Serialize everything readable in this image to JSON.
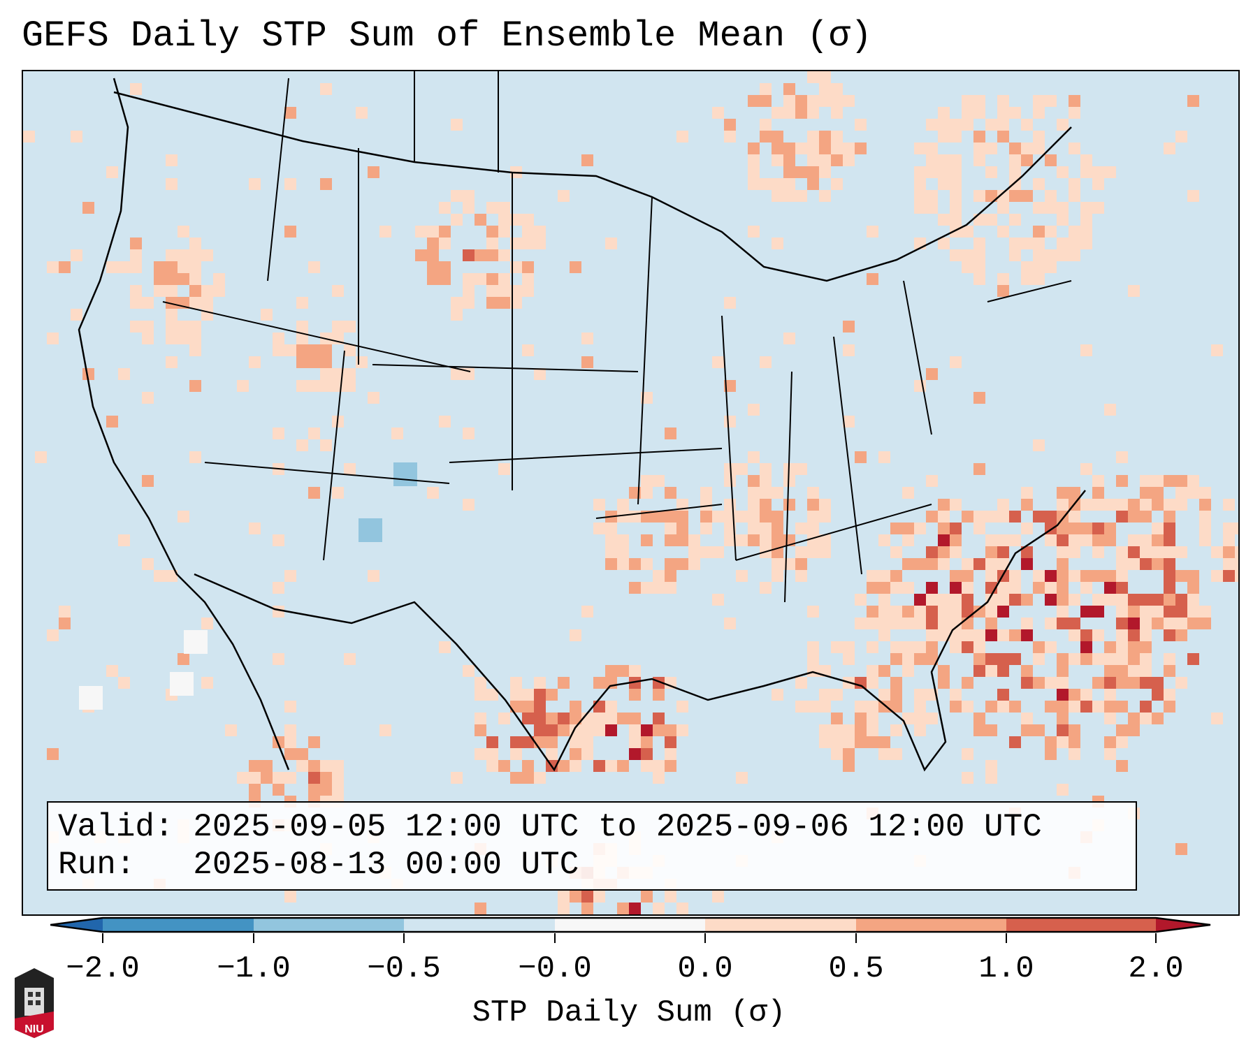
{
  "title": "GEFS Daily STP Sum of Ensemble Mean (σ)",
  "info": {
    "valid_label": "Valid:",
    "valid_value": "2025-09-05 12:00 UTC to 2025-09-06 12:00 UTC",
    "run_label": "Run:",
    "run_value": "2025-08-13 00:00 UTC"
  },
  "colorbar": {
    "label": "STP Daily Sum (σ)",
    "ticks": [
      "−2.0",
      "−1.0",
      "−0.5",
      "−0.0",
      "0.0",
      "0.5",
      "1.0",
      "2.0"
    ],
    "colors": {
      "under": "#2166ac",
      "b1": "#4393c3",
      "b2": "#92c5de",
      "b3": "#d1e5f0",
      "b4": "#f7f7f7",
      "b5": "#fddbc7",
      "b6": "#f4a582",
      "b7": "#d6604d",
      "over": "#b2182b"
    }
  },
  "logo": {
    "text": "NIU"
  }
}
